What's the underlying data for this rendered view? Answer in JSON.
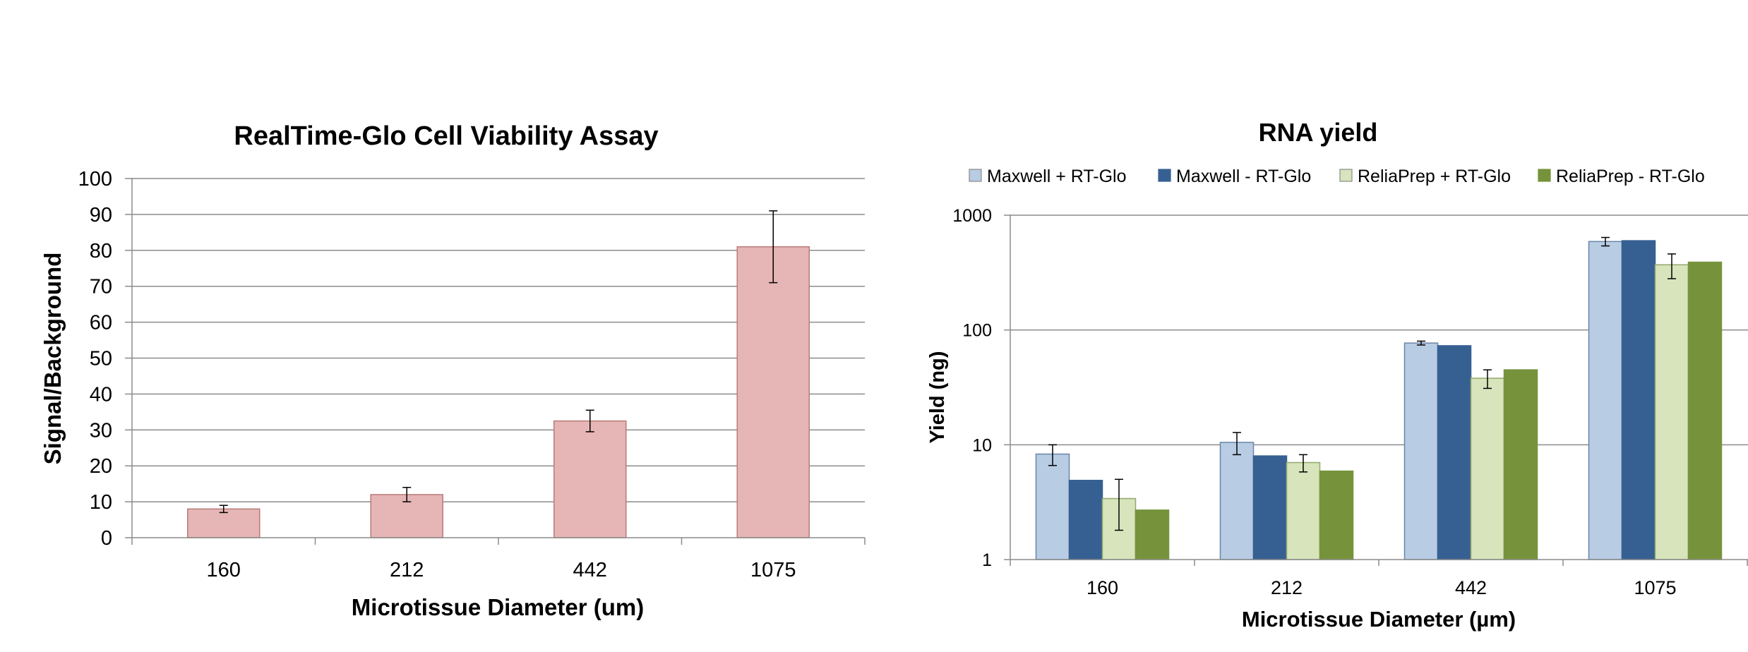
{
  "chart_data": [
    {
      "type": "bar",
      "title": "RealTime-Glo Cell Viability Assay",
      "xlabel": "Microtissue Diameter (um)",
      "ylabel": "Signal/Background",
      "categories": [
        "160",
        "212",
        "442",
        "1075"
      ],
      "series": [
        {
          "values": [
            8,
            12,
            32.5,
            81
          ],
          "error": [
            1,
            2,
            3,
            10
          ],
          "color": "#e6b5b5"
        }
      ],
      "ylim": [
        0,
        100
      ],
      "yticks": [
        "0",
        "10",
        "20",
        "30",
        "40",
        "50",
        "60",
        "70",
        "80",
        "90",
        "100"
      ],
      "grid": true,
      "legend": "none"
    },
    {
      "type": "bar",
      "title": "RNA yield",
      "xlabel": "Microtissue Diameter (µm)",
      "ylabel": "Yield (ng)",
      "yscale": "log",
      "categories": [
        "160",
        "212",
        "442",
        "1075"
      ],
      "series": [
        {
          "name": "Maxwell + RT-Glo",
          "values": [
            8.3,
            10.5,
            77,
            590
          ],
          "error": [
            1.7,
            2.3,
            3,
            50
          ],
          "color": "#b8cce4"
        },
        {
          "name": "Maxwell - RT-Glo",
          "values": [
            4.9,
            8,
            73,
            600
          ],
          "color": "#366092"
        },
        {
          "name": "ReliaPrep + RT-Glo",
          "values": [
            3.4,
            7,
            38,
            370
          ],
          "error": [
            1.6,
            1.2,
            7,
            90
          ],
          "color": "#d7e4bc"
        },
        {
          "name": "ReliaPrep - RT-Glo",
          "values": [
            2.7,
            5.9,
            45,
            390
          ],
          "color": "#76933c"
        }
      ],
      "ylim": [
        1,
        1000
      ],
      "yticks": [
        "1",
        "10",
        "100",
        "1000"
      ],
      "grid": true,
      "legend": "top"
    }
  ]
}
